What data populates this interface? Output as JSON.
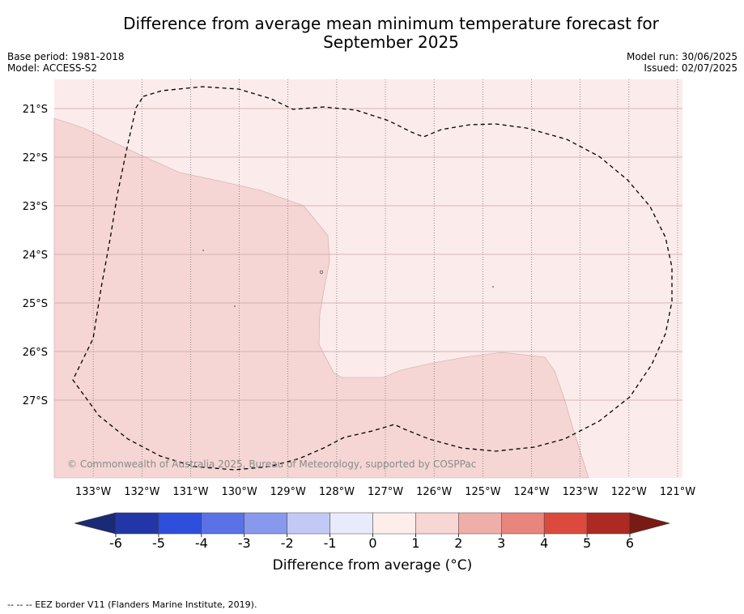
{
  "title": {
    "line1": "Difference from average mean minimum temperature forecast for",
    "line2": "September 2025"
  },
  "meta": {
    "base_period": "Base period: 1981-2018",
    "model": "Model: ACCESS-S2",
    "model_run": "Model run: 30/06/2025",
    "issued": "Issued: 02/07/2025"
  },
  "map": {
    "lon_range": [
      -133.8,
      -120.9
    ],
    "lat_range": [
      -28.6,
      -20.4
    ],
    "lon_ticks": [
      {
        "value": -133,
        "label": "133°W"
      },
      {
        "value": -132,
        "label": "132°W"
      },
      {
        "value": -131,
        "label": "131°W"
      },
      {
        "value": -130,
        "label": "130°W"
      },
      {
        "value": -129,
        "label": "129°W"
      },
      {
        "value": -128,
        "label": "128°W"
      },
      {
        "value": -127,
        "label": "127°W"
      },
      {
        "value": -126,
        "label": "126°W"
      },
      {
        "value": -125,
        "label": "125°W"
      },
      {
        "value": -124,
        "label": "124°W"
      },
      {
        "value": -123,
        "label": "123°W"
      },
      {
        "value": -122,
        "label": "122°W"
      },
      {
        "value": -121,
        "label": "121°W"
      }
    ],
    "lat_ticks": [
      {
        "value": -21,
        "label": "21°S"
      },
      {
        "value": -22,
        "label": "22°S"
      },
      {
        "value": -23,
        "label": "23°S"
      },
      {
        "value": -24,
        "label": "24°S"
      },
      {
        "value": -25,
        "label": "25°S"
      },
      {
        "value": -26,
        "label": "26°S"
      },
      {
        "value": -27,
        "label": "27°S"
      }
    ],
    "background_color": "#fbebea",
    "warm_region_color": "#f5d6d4",
    "copyright": "© Commonwealth of Australia 2025, Bureau of Meteorology, supported by COSPPac"
  },
  "colorbar": {
    "label": "Difference from average (°C)",
    "ticks": [
      "-6",
      "-5",
      "-4",
      "-3",
      "-2",
      "-1",
      "0",
      "1",
      "2",
      "3",
      "4",
      "5",
      "6"
    ],
    "under_color": "#1a2a75",
    "over_color": "#7a1a14",
    "colors": [
      "#2236a8",
      "#2e4fdc",
      "#5a72e6",
      "#8898ec",
      "#c2c9f4",
      "#e8ebfb",
      "#fdeeec",
      "#f7d6d3",
      "#efaea8",
      "#e8857d",
      "#dc4a3e",
      "#ad2a22"
    ]
  },
  "footnote": "--  --  -- EEZ border V11 (Flanders Marine Institute, 2019)."
}
